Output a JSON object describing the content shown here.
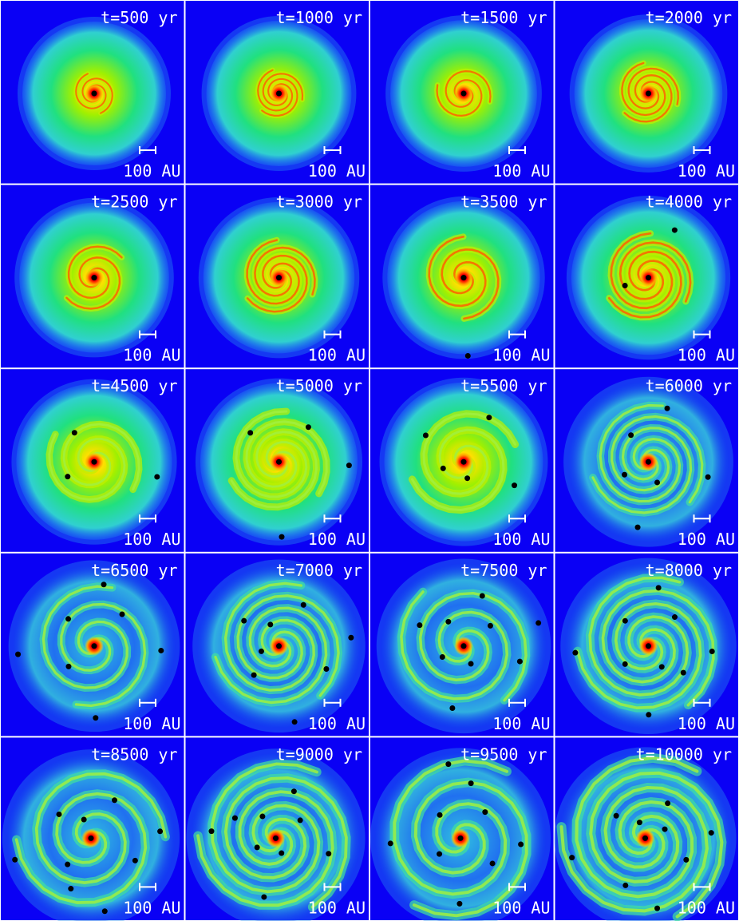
{
  "panels": [
    {
      "time": "t=500 yr",
      "scale": "100 AU"
    },
    {
      "time": "t=1000 yr",
      "scale": "100 AU"
    },
    {
      "time": "t=1500 yr",
      "scale": "100 AU"
    },
    {
      "time": "t=2000 yr",
      "scale": "100 AU"
    },
    {
      "time": "t=2500 yr",
      "scale": "100 AU"
    },
    {
      "time": "t=3000 yr",
      "scale": "100 AU"
    },
    {
      "time": "t=3500 yr",
      "scale": "100 AU"
    },
    {
      "time": "t=4000 yr",
      "scale": "100 AU"
    },
    {
      "time": "t=4500 yr",
      "scale": "100 AU"
    },
    {
      "time": "t=5000 yr",
      "scale": "100 AU"
    },
    {
      "time": "t=5500 yr",
      "scale": "100 AU"
    },
    {
      "time": "t=6000 yr",
      "scale": "100 AU"
    },
    {
      "time": "t=6500 yr",
      "scale": "100 AU"
    },
    {
      "time": "t=7000 yr",
      "scale": "100 AU"
    },
    {
      "time": "t=7500 yr",
      "scale": "100 AU"
    },
    {
      "time": "t=8000 yr",
      "scale": "100 AU"
    },
    {
      "time": "t=8500 yr",
      "scale": "100 AU"
    },
    {
      "time": "t=9000 yr",
      "scale": "100 AU"
    },
    {
      "time": "t=9500 yr",
      "scale": "100 AU"
    },
    {
      "time": "t=10000 yr",
      "scale": "100 AU"
    }
  ]
}
